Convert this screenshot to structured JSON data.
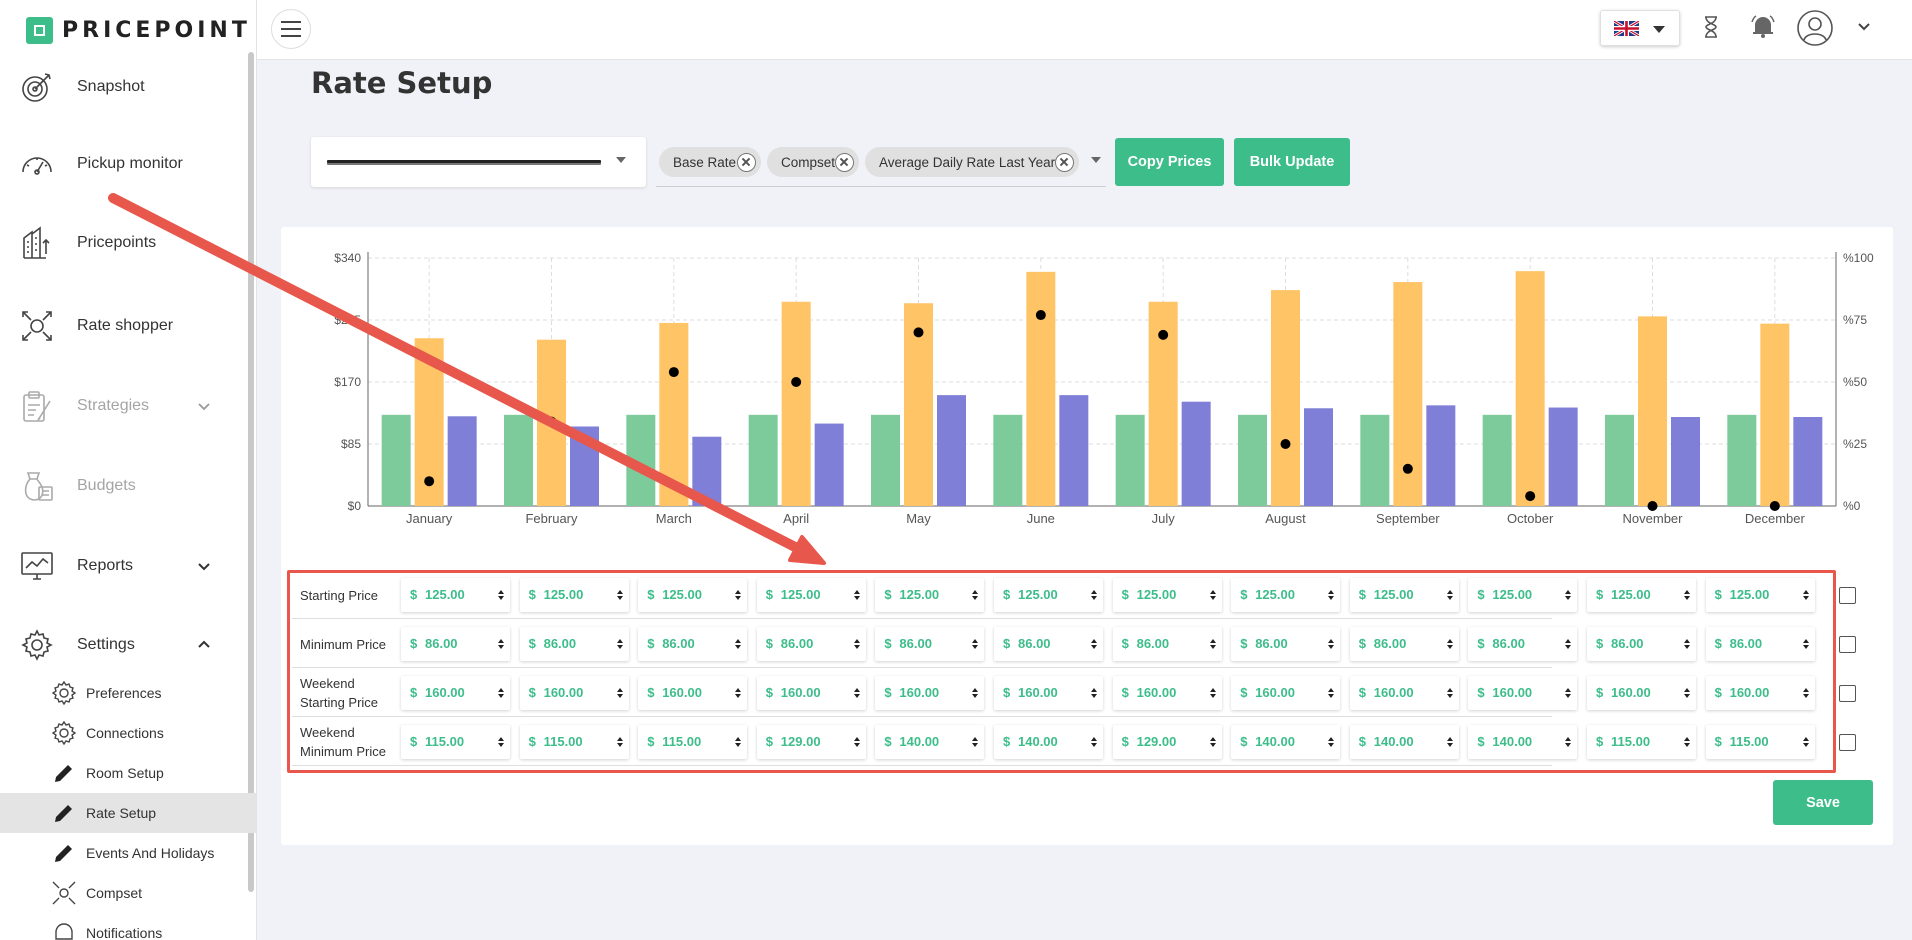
{
  "app": {
    "brand": "PRICEPOINT"
  },
  "sidebar": {
    "items": [
      {
        "label": "Snapshot",
        "icon": "target-icon"
      },
      {
        "label": "Pickup monitor",
        "icon": "gauge-icon"
      },
      {
        "label": "Pricepoints",
        "icon": "buildings-icon"
      },
      {
        "label": "Rate shopper",
        "icon": "rate-shopper-icon"
      },
      {
        "label": "Strategies",
        "icon": "clipboard-icon"
      },
      {
        "label": "Budgets",
        "icon": "money-bag-icon"
      },
      {
        "label": "Reports",
        "icon": "monitor-chart-icon"
      },
      {
        "label": "Settings",
        "icon": "gear-icon"
      }
    ],
    "settings_sub": [
      {
        "label": "Preferences",
        "icon": "gear-icon"
      },
      {
        "label": "Connections",
        "icon": "gear-icon"
      },
      {
        "label": "Room Setup",
        "icon": "pencil-icon"
      },
      {
        "label": "Rate Setup",
        "icon": "pencil-icon"
      },
      {
        "label": "Events And Holidays",
        "icon": "pencil-icon"
      },
      {
        "label": "Compset",
        "icon": "compset-icon"
      },
      {
        "label": "Notifications",
        "icon": "bell-outline-icon"
      }
    ]
  },
  "topbar": {
    "language_flag": "uk-flag-icon"
  },
  "page": {
    "title": "Rate Setup"
  },
  "filters": {
    "tags": [
      "Base Rate",
      "Compset",
      "Average Daily Rate Last Year"
    ],
    "copy_label": "Copy Prices",
    "bulk_label": "Bulk Update"
  },
  "chart_data": {
    "type": "bar",
    "categories": [
      "January",
      "February",
      "March",
      "April",
      "May",
      "June",
      "July",
      "August",
      "September",
      "October",
      "November",
      "December"
    ],
    "y_left_ticks": [
      "$0",
      "$85",
      "$170",
      "$255",
      "$340"
    ],
    "y_right_ticks": [
      "%0",
      "%25",
      "%50",
      "%75",
      "%100"
    ],
    "ylim": [
      0,
      340
    ],
    "y2lim": [
      0,
      100
    ],
    "grid": true,
    "series": [
      {
        "type": "bar",
        "color": "#7dca9b",
        "values": [
          125,
          125,
          125,
          125,
          125,
          125,
          125,
          125,
          125,
          125,
          125,
          125
        ]
      },
      {
        "type": "bar",
        "color": "#ffc466",
        "values": [
          230,
          228,
          251,
          280,
          278,
          321,
          280,
          296,
          307,
          322,
          260,
          250
        ]
      },
      {
        "type": "bar",
        "color": "#7f7fd7",
        "values": [
          123,
          109,
          95,
          113,
          152,
          152,
          143,
          134,
          138,
          135,
          122,
          122
        ]
      },
      {
        "type": "scatter",
        "axis": "right",
        "color": "#000000",
        "values": [
          10,
          34,
          54,
          50,
          70,
          77,
          69,
          25,
          15,
          4,
          0,
          0
        ]
      }
    ]
  },
  "price_rows": [
    {
      "label": "Starting Price",
      "values": [
        "125.00",
        "125.00",
        "125.00",
        "125.00",
        "125.00",
        "125.00",
        "125.00",
        "125.00",
        "125.00",
        "125.00",
        "125.00",
        "125.00"
      ]
    },
    {
      "label": "Minimum Price",
      "values": [
        "86.00",
        "86.00",
        "86.00",
        "86.00",
        "86.00",
        "86.00",
        "86.00",
        "86.00",
        "86.00",
        "86.00",
        "86.00",
        "86.00"
      ]
    },
    {
      "label": "Weekend Starting Price",
      "values": [
        "160.00",
        "160.00",
        "160.00",
        "160.00",
        "160.00",
        "160.00",
        "160.00",
        "160.00",
        "160.00",
        "160.00",
        "160.00",
        "160.00"
      ]
    },
    {
      "label": "Weekend Minimum Price",
      "values": [
        "115.00",
        "115.00",
        "115.00",
        "129.00",
        "140.00",
        "140.00",
        "129.00",
        "140.00",
        "140.00",
        "140.00",
        "115.00",
        "115.00"
      ]
    }
  ],
  "currency": "$",
  "save_label": "Save",
  "colors": {
    "accent": "#3dbd8a",
    "annotation": "#e8574c"
  }
}
